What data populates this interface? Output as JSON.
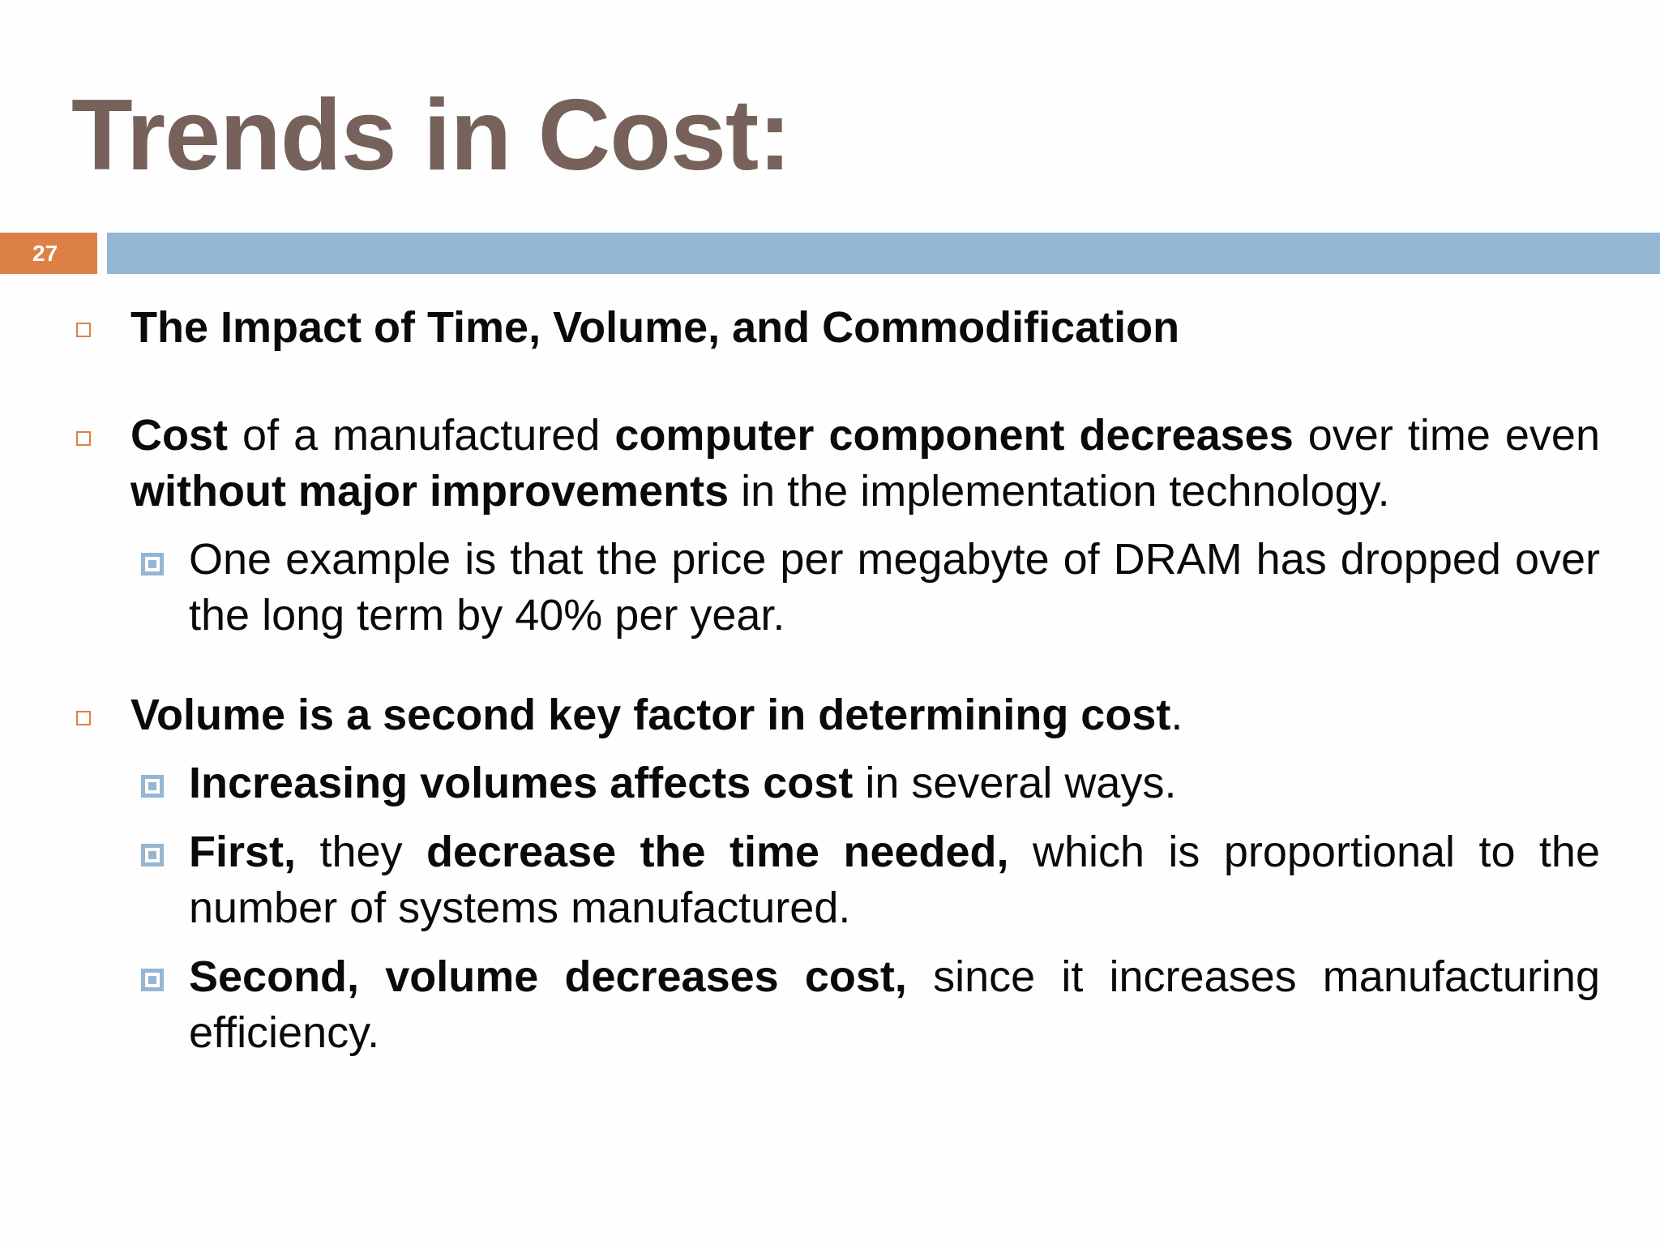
{
  "slide": {
    "title": "Trends in Cost:",
    "number": "27"
  },
  "colors": {
    "title": "#76625a",
    "accent_orange": "#dd8047",
    "accent_blue": "#94b6d2",
    "text": "#0a0a0a"
  },
  "bullets": {
    "b1": {
      "bold": "The Impact of Time, Volume, and Commodification"
    },
    "b2": {
      "bold1": "Cost",
      "text1": " of a manufactured ",
      "bold2": "computer component decreases",
      "text2": " over time even ",
      "bold3": "without major improvements",
      "text3": " in the implementation technology."
    },
    "b2_1": {
      "text": "One example is that the price per megabyte of DRAM has dropped over the long term by 40% per year."
    },
    "b3": {
      "bold": "Volume is a second key factor in determining cost",
      "text": "."
    },
    "b3_1": {
      "bold": "Increasing volumes affects cost",
      "text": " in several ways."
    },
    "b3_2": {
      "bold1": "First,",
      "text1": " they ",
      "bold2": "decrease the time needed,",
      "text2": " which is proportional to the number of systems manufactured."
    },
    "b3_3": {
      "bold": "Second, volume decreases cost,",
      "text": " since it increases manufacturing efficiency."
    }
  }
}
